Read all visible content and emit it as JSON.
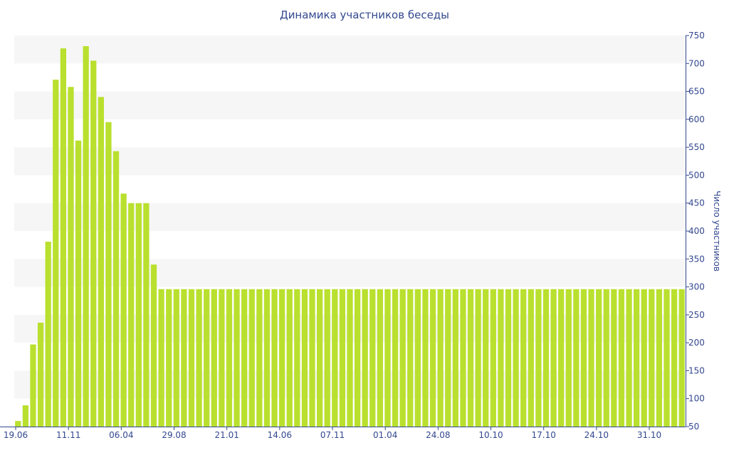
{
  "chart_data": {
    "type": "bar",
    "title": "Динамика участников беседы",
    "xlabel": "",
    "ylabel": "Число участников",
    "ylim": [
      50,
      750
    ],
    "y_ticks": [
      50,
      100,
      150,
      200,
      250,
      300,
      350,
      400,
      450,
      500,
      550,
      600,
      650,
      700,
      750
    ],
    "x_tick_labels": [
      "19.06",
      "11.11",
      "06.04",
      "29.08",
      "21.01",
      "14.06",
      "07.11",
      "01.04",
      "24.08",
      "10.10",
      "17.10",
      "24.10",
      "31.10"
    ],
    "x_tick_positions": [
      0,
      7,
      14,
      21,
      28,
      35,
      42,
      49,
      56,
      63,
      70,
      77,
      84
    ],
    "y_axis_side": "right",
    "grid": "alternating horizontal bands",
    "bar_color": "#b9e02e",
    "band_color": "#f6f6f6",
    "axis_color": "#33488f",
    "values": [
      60,
      88,
      197,
      236,
      381,
      671,
      727,
      658,
      562,
      731,
      705,
      640,
      595,
      543,
      467,
      450,
      450,
      450,
      340,
      296,
      296,
      296,
      296,
      296,
      296,
      296,
      296,
      296,
      296,
      296,
      296,
      296,
      296,
      296,
      296,
      296,
      296,
      296,
      296,
      296,
      296,
      296,
      296,
      296,
      296,
      296,
      296,
      296,
      296,
      296,
      296,
      296,
      296,
      296,
      296,
      296,
      296,
      296,
      296,
      296,
      296,
      296,
      296,
      296,
      296,
      296,
      296,
      296,
      296,
      296,
      296,
      296,
      296,
      296,
      296,
      296,
      296,
      296,
      296,
      296,
      296,
      296,
      296,
      296,
      296,
      296,
      296,
      296,
      296
    ]
  }
}
